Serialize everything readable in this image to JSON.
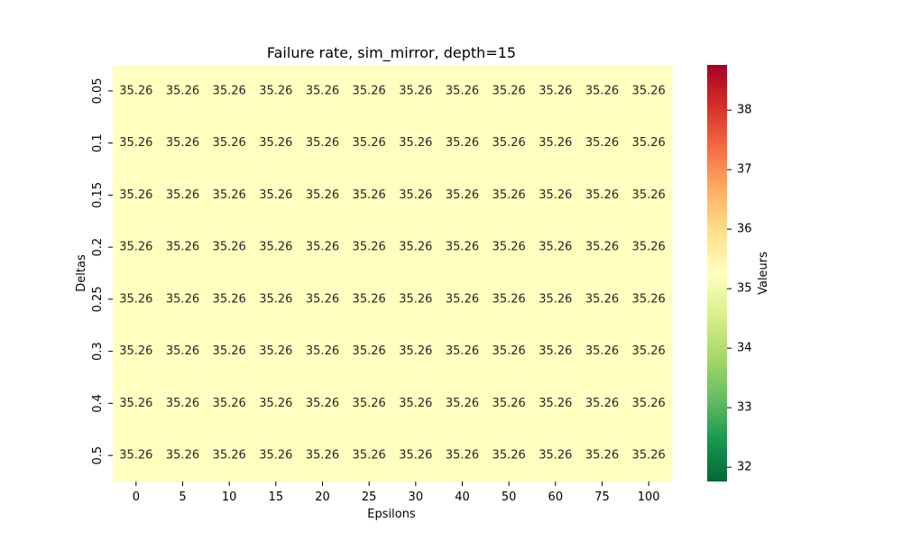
{
  "chart_data": {
    "type": "heatmap",
    "title": "Failure rate, sim_mirror, depth=15",
    "xlabel": "Epsilons",
    "ylabel": "Deltas",
    "x_categories": [
      "0",
      "5",
      "10",
      "15",
      "20",
      "25",
      "30",
      "40",
      "50",
      "60",
      "75",
      "100"
    ],
    "y_categories": [
      "0.05",
      "0.1",
      "0.15",
      "0.2",
      "0.25",
      "0.3",
      "0.4",
      "0.5"
    ],
    "values": [
      [
        35.26,
        35.26,
        35.26,
        35.26,
        35.26,
        35.26,
        35.26,
        35.26,
        35.26,
        35.26,
        35.26,
        35.26
      ],
      [
        35.26,
        35.26,
        35.26,
        35.26,
        35.26,
        35.26,
        35.26,
        35.26,
        35.26,
        35.26,
        35.26,
        35.26
      ],
      [
        35.26,
        35.26,
        35.26,
        35.26,
        35.26,
        35.26,
        35.26,
        35.26,
        35.26,
        35.26,
        35.26,
        35.26
      ],
      [
        35.26,
        35.26,
        35.26,
        35.26,
        35.26,
        35.26,
        35.26,
        35.26,
        35.26,
        35.26,
        35.26,
        35.26
      ],
      [
        35.26,
        35.26,
        35.26,
        35.26,
        35.26,
        35.26,
        35.26,
        35.26,
        35.26,
        35.26,
        35.26,
        35.26
      ],
      [
        35.26,
        35.26,
        35.26,
        35.26,
        35.26,
        35.26,
        35.26,
        35.26,
        35.26,
        35.26,
        35.26,
        35.26
      ],
      [
        35.26,
        35.26,
        35.26,
        35.26,
        35.26,
        35.26,
        35.26,
        35.26,
        35.26,
        35.26,
        35.26,
        35.26
      ],
      [
        35.26,
        35.26,
        35.26,
        35.26,
        35.26,
        35.26,
        35.26,
        35.26,
        35.26,
        35.26,
        35.26,
        35.26
      ]
    ],
    "cell_labels": "35.26",
    "colorbar": {
      "label": "Valeurs",
      "colormap": "RdYlGn_r",
      "range": [
        31.76,
        38.76
      ],
      "ticks": [
        32,
        33,
        34,
        35,
        36,
        37,
        38
      ],
      "tick_labels": [
        "32",
        "33",
        "34",
        "35",
        "36",
        "37",
        "38"
      ]
    },
    "grid": false,
    "legend": "colorbar-right"
  }
}
